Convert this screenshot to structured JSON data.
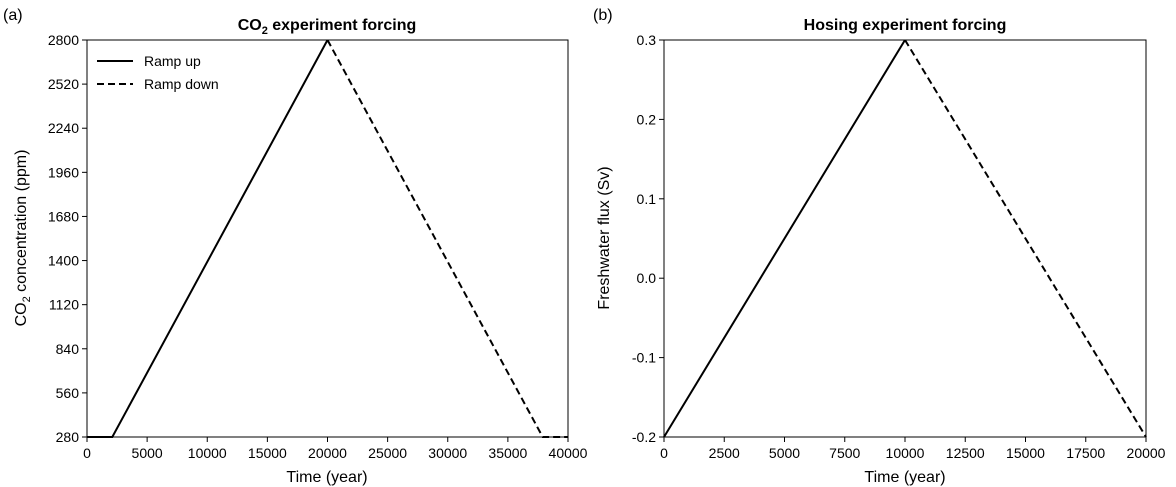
{
  "chart_data": [
    {
      "type": "line",
      "panel_label": "(a)",
      "title": "CO",
      "title_sub": "2",
      "title_rest": " experiment forcing",
      "xlabel": "Time (year)",
      "ylabel": "CO",
      "ylabel_sub": "2",
      "ylabel_rest": " concentration (ppm)",
      "xlim": [
        0,
        40000
      ],
      "ylim": [
        280,
        2800
      ],
      "xticks": [
        0,
        5000,
        10000,
        15000,
        20000,
        25000,
        30000,
        35000,
        40000
      ],
      "yticks": [
        280,
        560,
        840,
        1120,
        1400,
        1680,
        1960,
        2240,
        2520,
        2800
      ],
      "legend_position": "top-left",
      "series": [
        {
          "name": "Ramp up",
          "style": "solid",
          "color": "#000000",
          "x": [
            0,
            2100,
            20000
          ],
          "y": [
            280,
            280,
            2800
          ]
        },
        {
          "name": "Ramp down",
          "style": "dashed",
          "color": "#000000",
          "x": [
            20000,
            37900,
            40000
          ],
          "y": [
            2800,
            280,
            280
          ]
        }
      ]
    },
    {
      "type": "line",
      "panel_label": "(b)",
      "title": "Hosing experiment forcing",
      "title_sub": "",
      "title_rest": "",
      "xlabel": "Time (year)",
      "ylabel": "Freshwater flux (Sv)",
      "ylabel_sub": "",
      "ylabel_rest": "",
      "xlim": [
        0,
        20000
      ],
      "ylim": [
        -0.2,
        0.3
      ],
      "xticks": [
        0,
        2500,
        5000,
        7500,
        10000,
        12500,
        15000,
        17500,
        20000
      ],
      "yticks": [
        -0.2,
        -0.1,
        0.0,
        0.1,
        0.2,
        0.3
      ],
      "ytick_decimals": 1,
      "series": [
        {
          "name": "",
          "style": "solid",
          "color": "#000000",
          "x": [
            0,
            10000
          ],
          "y": [
            -0.2,
            0.3
          ]
        },
        {
          "name": "",
          "style": "dashed",
          "color": "#000000",
          "x": [
            10000,
            20000
          ],
          "y": [
            0.3,
            -0.2
          ]
        }
      ]
    }
  ]
}
